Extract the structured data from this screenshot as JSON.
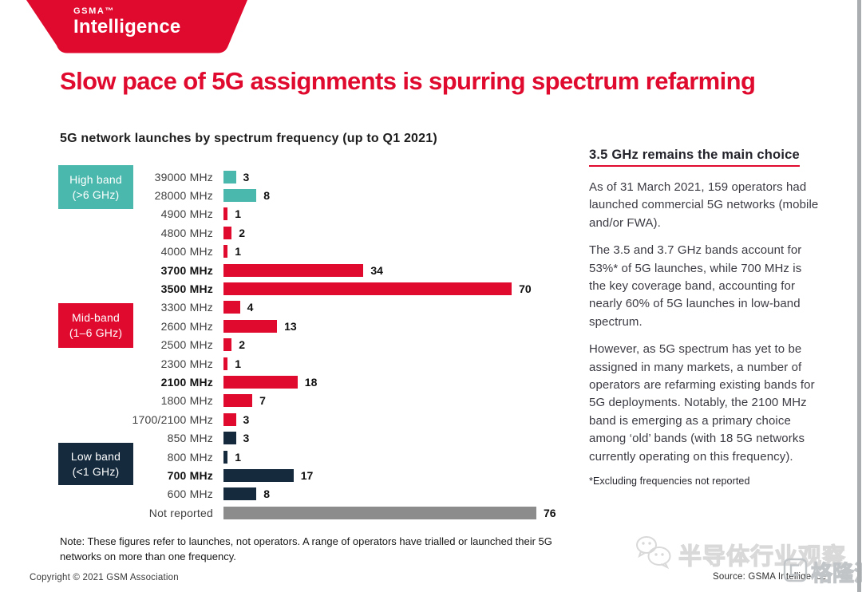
{
  "logo": {
    "brand": "GSMA™",
    "product": "Intelligence"
  },
  "headline": "Slow pace of 5G assignments is spurring spectrum refarming",
  "chart_data": {
    "type": "bar",
    "orientation": "horizontal",
    "title": "5G network launches by spectrum frequency (up to Q1 2021)",
    "categories": [
      "39000 MHz",
      "28000 MHz",
      "4900 MHz",
      "4800 MHz",
      "4000 MHz",
      "3700 MHz",
      "3500 MHz",
      "3300 MHz",
      "2600 MHz",
      "2500 MHz",
      "2300 MHz",
      "2100 MHz",
      "1800 MHz",
      "1700/2100 MHz",
      "850 MHz",
      "800 MHz",
      "700 MHz",
      "600 MHz",
      "Not reported"
    ],
    "values": [
      3,
      8,
      1,
      2,
      1,
      34,
      70,
      4,
      13,
      2,
      1,
      18,
      7,
      3,
      3,
      1,
      17,
      8,
      76
    ],
    "bar_colors": [
      "#4BB8AD",
      "#4BB8AD",
      "#E00A2F",
      "#E00A2F",
      "#E00A2F",
      "#E00A2F",
      "#E00A2F",
      "#E00A2F",
      "#E00A2F",
      "#E00A2F",
      "#E00A2F",
      "#E00A2F",
      "#E00A2F",
      "#E00A2F",
      "#152A3D",
      "#152A3D",
      "#152A3D",
      "#152A3D",
      "#8C8C8C"
    ],
    "bold_categories": [
      "3700 MHz",
      "3500 MHz",
      "2100 MHz",
      "700 MHz"
    ],
    "value_labels_shown": true,
    "xlim": [
      0,
      76
    ],
    "grid": false,
    "band_groups": [
      {
        "label": "High band",
        "sublabel": "(>6 GHz)",
        "color": "#4BB8AD",
        "categories": [
          "39000 MHz",
          "28000 MHz"
        ]
      },
      {
        "label": "Mid-band",
        "sublabel": "(1–6 GHz)",
        "color": "#E00A2F",
        "categories": [
          "4900 MHz",
          "4800 MHz",
          "4000 MHz",
          "3700 MHz",
          "3500 MHz",
          "3300 MHz",
          "2600 MHz",
          "2500 MHz",
          "2300 MHz",
          "2100 MHz",
          "1800 MHz",
          "1700/2100 MHz"
        ]
      },
      {
        "label": "Low band",
        "sublabel": "(<1 GHz)",
        "color": "#152A3D",
        "categories": [
          "850 MHz",
          "800 MHz",
          "700 MHz",
          "600 MHz"
        ]
      }
    ]
  },
  "right_panel": {
    "heading": "3.5 GHz remains the main choice",
    "paragraphs": [
      "As of 31 March 2021, 159 operators had launched commercial 5G networks (mobile and/or FWA).",
      "The 3.5 and 3.7 GHz bands account for 53%* of 5G launches, while 700 MHz is the key coverage band, accounting for nearly 60% of 5G launches in low-band spectrum.",
      "However, as 5G spectrum has yet to be assigned in many markets, a number of operators are refarming existing bands for 5G deployments. Notably, the 2100 MHz band is emerging as a primary choice among ‘old’ bands (with 18 5G networks currently operating on this frequency)."
    ],
    "footnote": "*Excluding frequencies not reported"
  },
  "footer": {
    "note": "Note: These figures refer to launches, not operators. A range of operators have trialled or launched their 5G networks on more than one frequency.",
    "copyright": "Copyright © 2021 GSM Association",
    "source": "Source: GSMA Intelligence"
  },
  "watermarks": {
    "center_text": "半导体行业观察",
    "corner_text": "格隆汇"
  },
  "colors": {
    "accent_red": "#E00A2F",
    "high_band_teal": "#4BB8AD",
    "low_band_navy": "#152A3D",
    "not_reported_gray": "#8C8C8C"
  }
}
